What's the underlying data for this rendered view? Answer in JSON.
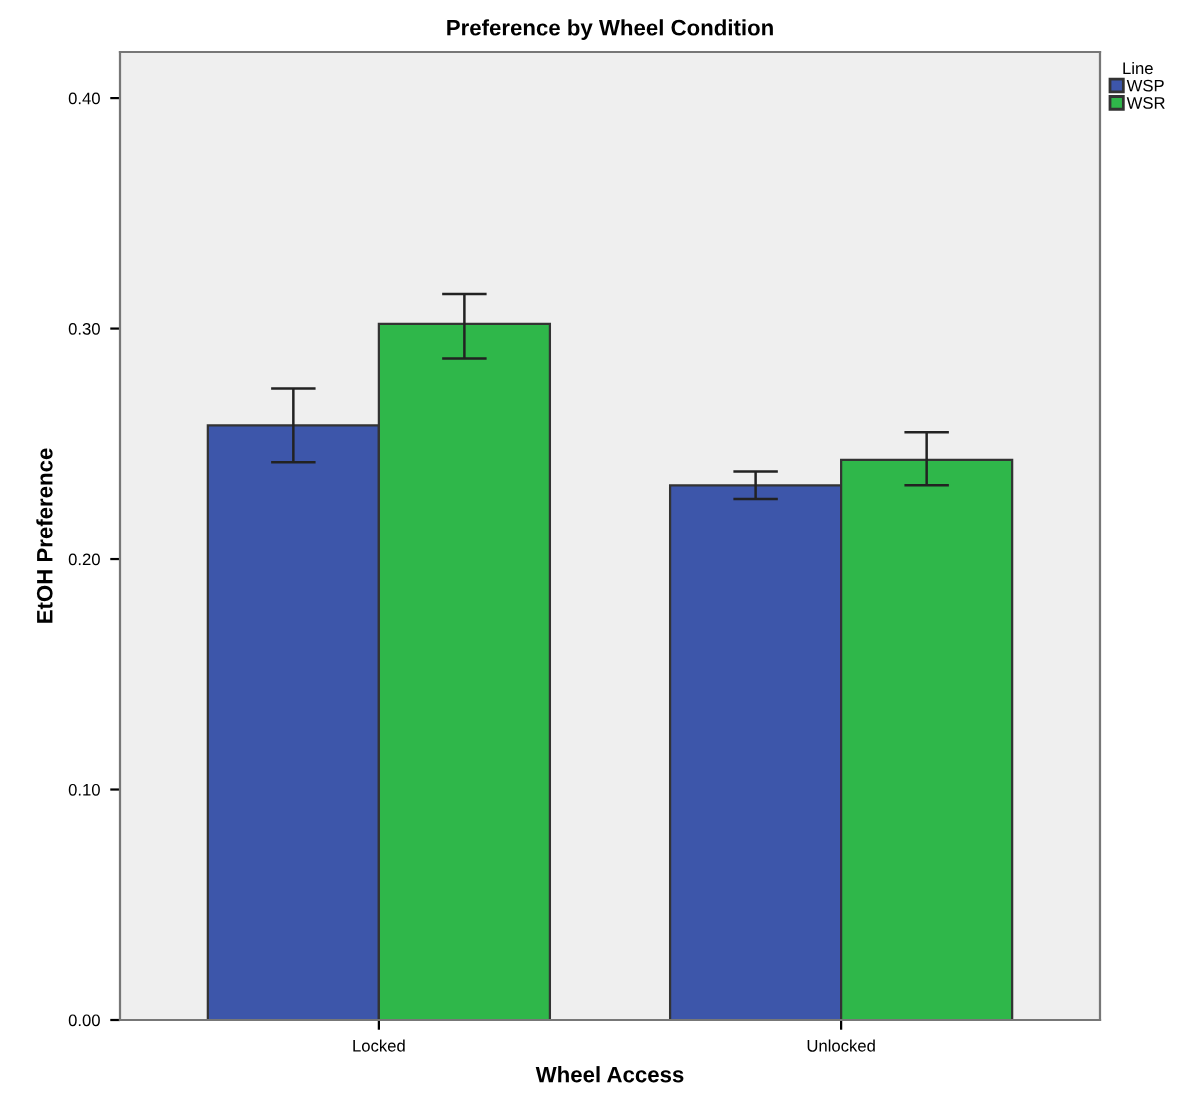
{
  "chart_data": {
    "type": "bar",
    "title": "Preference by Wheel Condition",
    "xlabel": "Wheel Access",
    "ylabel": "EtOH Preference",
    "legend_title": "Line",
    "categories": [
      "Locked",
      "Unlocked"
    ],
    "series": [
      {
        "name": "WSP",
        "color": "#3d56aa",
        "values": [
          0.258,
          0.232
        ],
        "errors": [
          [
            0.242,
            0.274
          ],
          [
            0.226,
            0.238
          ]
        ]
      },
      {
        "name": "WSR",
        "color": "#2fb74a",
        "values": [
          0.302,
          0.243
        ],
        "errors": [
          [
            0.287,
            0.315
          ],
          [
            0.232,
            0.255
          ]
        ]
      }
    ],
    "ylim": [
      0,
      0.42
    ],
    "yticks": [
      {
        "value": 0,
        "label": "0.00"
      },
      {
        "value": 0.1,
        "label": "0.10"
      },
      {
        "value": 0.2,
        "label": "0.20"
      },
      {
        "value": 0.3,
        "label": "0.30"
      },
      {
        "value": 0.4,
        "label": "0.40"
      }
    ],
    "grid": false,
    "legend": "top right"
  }
}
